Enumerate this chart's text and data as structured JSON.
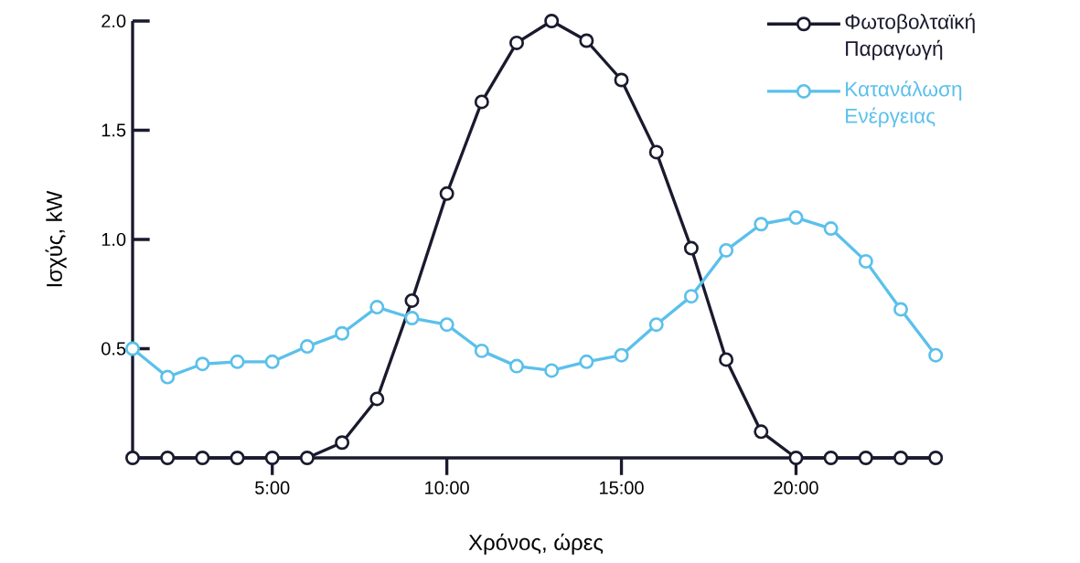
{
  "chart_data": {
    "type": "line",
    "xlabel": "Χρόνος, ώρες",
    "ylabel": "Ισχύς, kW",
    "x": [
      1,
      2,
      3,
      4,
      5,
      6,
      7,
      8,
      9,
      10,
      11,
      12,
      13,
      14,
      15,
      16,
      17,
      18,
      19,
      20,
      21,
      22,
      23,
      24
    ],
    "series": [
      {
        "name": "Φωτοβολταϊκή Παραγωγή",
        "color": "#1a1a2e",
        "values": [
          0,
          0,
          0,
          0,
          0,
          0,
          0.07,
          0.27,
          0.72,
          1.21,
          1.63,
          1.9,
          2.0,
          1.91,
          1.73,
          1.4,
          0.96,
          0.45,
          0.12,
          0,
          0,
          0,
          0,
          0
        ]
      },
      {
        "name": "Κατανάλωση Ενέργειας",
        "color": "#5bc0eb",
        "values": [
          0.5,
          0.37,
          0.43,
          0.44,
          0.44,
          0.51,
          0.57,
          0.69,
          0.64,
          0.61,
          0.49,
          0.42,
          0.4,
          0.44,
          0.47,
          0.61,
          0.74,
          0.95,
          1.07,
          1.1,
          1.05,
          0.9,
          0.68,
          0.47
        ]
      }
    ],
    "xlim": [
      1,
      24.1
    ],
    "ylim": [
      0,
      2
    ],
    "xticks": [
      {
        "value": 5,
        "label": "5:00"
      },
      {
        "value": 10,
        "label": "10:00"
      },
      {
        "value": 15,
        "label": "15:00"
      },
      {
        "value": 20,
        "label": "20:00"
      }
    ],
    "yticks": [
      {
        "value": 0.5,
        "label": "0.5"
      },
      {
        "value": 1,
        "label": "1.0"
      },
      {
        "value": 1.5,
        "label": "1.5"
      },
      {
        "value": 2,
        "label": "2.0"
      }
    ],
    "grid": false,
    "legend": "top right",
    "marker": "circle",
    "line_style": "solid"
  }
}
